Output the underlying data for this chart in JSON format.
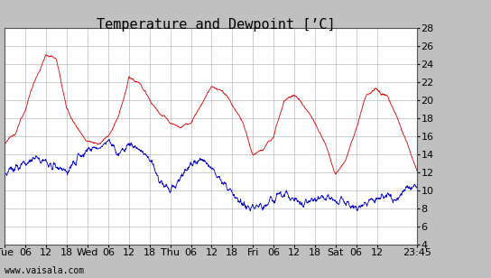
{
  "title": "Temperature and Dewpoint [’C]",
  "ylim": [
    4,
    28
  ],
  "yticks": [
    4,
    6,
    8,
    10,
    12,
    14,
    16,
    18,
    20,
    22,
    24,
    26,
    28
  ],
  "xtick_labels": [
    "Tue",
    "06",
    "12",
    "18",
    "Wed",
    "06",
    "12",
    "18",
    "Thu",
    "06",
    "12",
    "18",
    "Fri",
    "06",
    "12",
    "18",
    "Sat",
    "06",
    "12",
    "23:45"
  ],
  "xtick_positions": [
    0,
    6,
    12,
    18,
    24,
    30,
    36,
    42,
    48,
    54,
    60,
    66,
    72,
    78,
    84,
    90,
    96,
    102,
    108,
    119.75
  ],
  "xlim": [
    0,
    119.75
  ],
  "plot_bg": "#ffffff",
  "fig_bg": "#c0c0c0",
  "grid_color": "#aaaaaa",
  "temp_color": "#dd0000",
  "dew_color": "#0000cc",
  "footer": "www.vaisala.com",
  "title_fontsize": 11,
  "tick_fontsize": 8,
  "footer_fontsize": 7,
  "temp_envelope": [
    [
      0,
      15.0
    ],
    [
      3,
      16.5
    ],
    [
      6,
      19.0
    ],
    [
      9,
      22.5
    ],
    [
      12,
      25.0
    ],
    [
      15,
      24.5
    ],
    [
      18,
      19.0
    ],
    [
      21,
      17.0
    ],
    [
      24,
      15.5
    ],
    [
      27,
      15.0
    ],
    [
      30,
      16.0
    ],
    [
      33,
      18.0
    ],
    [
      36,
      22.5
    ],
    [
      39,
      22.0
    ],
    [
      42,
      20.0
    ],
    [
      45,
      18.5
    ],
    [
      48,
      17.5
    ],
    [
      51,
      17.0
    ],
    [
      54,
      17.5
    ],
    [
      57,
      19.5
    ],
    [
      60,
      21.5
    ],
    [
      63,
      21.0
    ],
    [
      66,
      19.5
    ],
    [
      69,
      17.5
    ],
    [
      72,
      14.0
    ],
    [
      75,
      14.5
    ],
    [
      78,
      16.0
    ],
    [
      81,
      20.0
    ],
    [
      84,
      20.5
    ],
    [
      87,
      19.5
    ],
    [
      90,
      17.5
    ],
    [
      93,
      15.0
    ],
    [
      96,
      12.0
    ],
    [
      99,
      13.5
    ],
    [
      102,
      17.0
    ],
    [
      105,
      20.5
    ],
    [
      108,
      21.0
    ],
    [
      111,
      20.5
    ],
    [
      114,
      18.0
    ],
    [
      116,
      16.0
    ],
    [
      119.75,
      12.0
    ]
  ],
  "dew_envelope": [
    [
      0,
      12.0
    ],
    [
      3,
      12.5
    ],
    [
      6,
      13.0
    ],
    [
      9,
      13.5
    ],
    [
      12,
      13.0
    ],
    [
      15,
      12.5
    ],
    [
      18,
      12.0
    ],
    [
      21,
      13.5
    ],
    [
      24,
      14.5
    ],
    [
      27,
      15.0
    ],
    [
      30,
      15.5
    ],
    [
      33,
      14.0
    ],
    [
      36,
      15.0
    ],
    [
      39,
      14.5
    ],
    [
      42,
      13.5
    ],
    [
      45,
      11.0
    ],
    [
      48,
      10.0
    ],
    [
      51,
      11.5
    ],
    [
      54,
      13.0
    ],
    [
      57,
      13.5
    ],
    [
      60,
      12.5
    ],
    [
      63,
      11.0
    ],
    [
      66,
      9.5
    ],
    [
      69,
      8.5
    ],
    [
      72,
      8.0
    ],
    [
      75,
      8.5
    ],
    [
      78,
      9.0
    ],
    [
      81,
      9.5
    ],
    [
      84,
      9.0
    ],
    [
      87,
      8.5
    ],
    [
      90,
      9.0
    ],
    [
      93,
      9.5
    ],
    [
      96,
      9.0
    ],
    [
      99,
      8.5
    ],
    [
      102,
      8.0
    ],
    [
      105,
      8.5
    ],
    [
      108,
      9.0
    ],
    [
      111,
      9.5
    ],
    [
      114,
      9.0
    ],
    [
      116,
      10.0
    ],
    [
      119.75,
      10.5
    ]
  ]
}
